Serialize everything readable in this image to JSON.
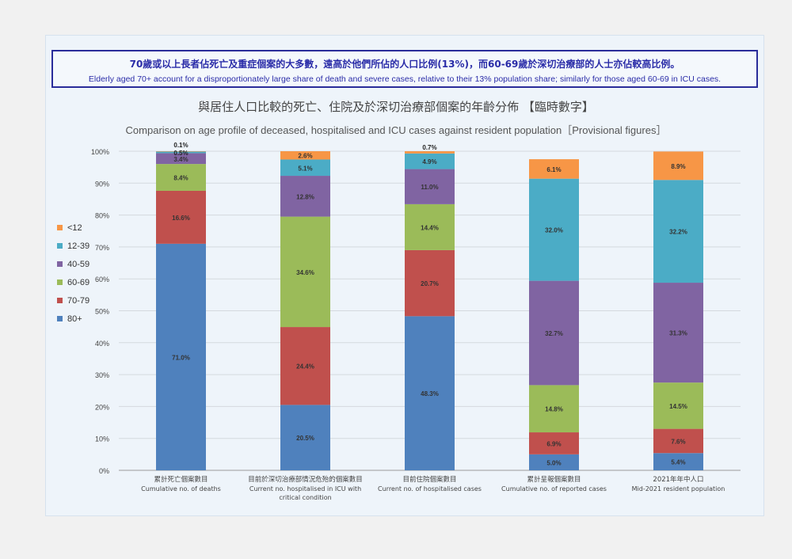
{
  "callout": {
    "zh": "70歲或以上長者佔死亡及重症個案的大多數，遠高於他們所佔的人口比例(13%)，而60-69歲於深切治療部的人士亦佔較高比例。",
    "en": "Elderly aged 70+ account for a disproportionately large share of death and severe cases, relative to their 13% population share; similarly for those aged 60-69 in ICU cases."
  },
  "chart_data": {
    "type": "bar",
    "stacked": true,
    "title": "與居住人口比較的死亡、住院及於深切治療部個案的年齡分佈 【臨時數字】",
    "subtitle": "Comparison on age profile of deceased, hospitalised and ICU cases against resident population［Provisional figures］",
    "ylim": [
      0,
      100
    ],
    "yticks": [
      "0%",
      "10%",
      "20%",
      "30%",
      "40%",
      "50%",
      "60%",
      "70%",
      "80%",
      "90%",
      "100%"
    ],
    "grid": true,
    "legend_position": "left",
    "categories_zh": [
      "累計死亡個案數目",
      "目前於深切治療部情況危殆的個案數目",
      "目前住院個案數目",
      "累計呈報個案數目",
      "2021年年中人口"
    ],
    "categories_en": [
      "Cumulative no. of deaths",
      "Current no. hospitalised in ICU with critical condition",
      "Current no. of hospitalised cases",
      "Cumulative no. of reported cases",
      "Mid-2021 resident population"
    ],
    "series": [
      {
        "name": "80+",
        "color": "#4f81bd",
        "values": [
          71.0,
          20.5,
          48.3,
          5.0,
          5.4
        ],
        "labels": [
          "71.0%",
          "20.5%",
          "48.3%",
          "5.0%",
          "5.4%"
        ]
      },
      {
        "name": "70-79",
        "color": "#c0504d",
        "values": [
          16.6,
          24.4,
          20.7,
          6.9,
          7.6
        ],
        "labels": [
          "16.6%",
          "24.4%",
          "20.7%",
          "6.9%",
          "7.6%"
        ]
      },
      {
        "name": "60-69",
        "color": "#9bbb59",
        "values": [
          8.4,
          34.6,
          14.4,
          14.8,
          14.5
        ],
        "labels": [
          "8.4%",
          "34.6%",
          "14.4%",
          "14.8%",
          "14.5%"
        ]
      },
      {
        "name": "40-59",
        "color": "#8064a2",
        "values": [
          3.4,
          12.8,
          11.0,
          32.7,
          31.3
        ],
        "labels": [
          "3.4%",
          "12.8%",
          "11.0%",
          "32.7%",
          "31.3%"
        ]
      },
      {
        "name": "12-39",
        "color": "#4bacc6",
        "values": [
          0.5,
          5.1,
          4.9,
          32.0,
          32.2
        ],
        "labels": [
          "0.5%",
          "5.1%",
          "4.9%",
          "32.0%",
          "32.2%"
        ]
      },
      {
        "name": "<12",
        "color": "#f79646",
        "values": [
          0.1,
          2.6,
          0.7,
          6.1,
          8.9
        ],
        "labels": [
          "0.1%",
          "2.6%",
          "0.7%",
          "6.1%",
          "8.9%"
        ]
      }
    ]
  }
}
